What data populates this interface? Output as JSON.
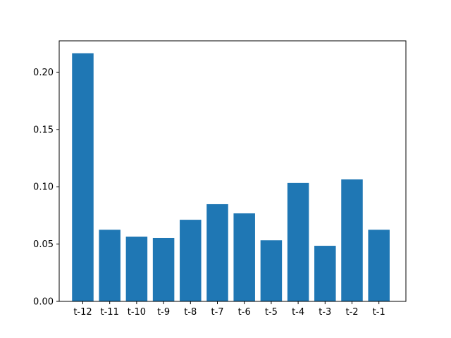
{
  "chart_data": {
    "type": "bar",
    "categories": [
      "t-12",
      "t-11",
      "t-10",
      "t-9",
      "t-8",
      "t-7",
      "t-6",
      "t-5",
      "t-4",
      "t-3",
      "t-2",
      "t-1"
    ],
    "values": [
      0.2165,
      0.0625,
      0.0565,
      0.0553,
      0.0712,
      0.0848,
      0.0768,
      0.0533,
      0.1033,
      0.0485,
      0.1065,
      0.0625
    ],
    "yticks": [
      "0.00",
      "0.05",
      "0.10",
      "0.15",
      "0.20"
    ],
    "ylim": [
      0,
      0.2273
    ],
    "bar_color": "#1f77b4",
    "grid": false,
    "title": "",
    "xlabel": "",
    "ylabel": ""
  }
}
